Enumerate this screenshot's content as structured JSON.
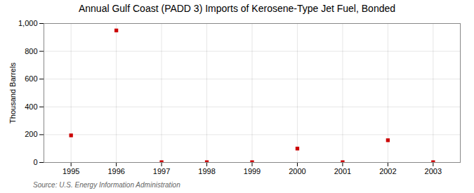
{
  "chart_data": {
    "type": "scatter",
    "title": "Annual Gulf Coast (PADD 3) Imports of Kerosene-Type Jet Fuel, Bonded",
    "ylabel": "Thousand Barrels",
    "annotation": "Source: U.S. Energy Information Administration",
    "x": [
      1995,
      1996,
      1997,
      1998,
      1999,
      2000,
      2001,
      2002,
      2003
    ],
    "values": [
      195,
      950,
      2,
      2,
      2,
      100,
      2,
      160,
      2
    ],
    "color": "#cc0000",
    "marker": "square",
    "xlim": [
      1994.4,
      2003.6
    ],
    "xticks": [
      1995,
      1996,
      1997,
      1998,
      1999,
      2000,
      2001,
      2002,
      2003
    ],
    "ylim": [
      0,
      1000
    ],
    "yticks": [
      0,
      200,
      400,
      600,
      800,
      {
        "value": 1000,
        "label": "1,000"
      }
    ],
    "grid": true
  }
}
